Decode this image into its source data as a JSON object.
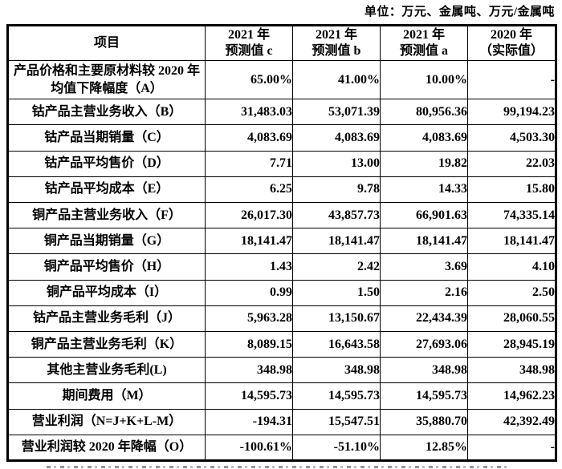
{
  "unit_note": "单位：万元、金属吨、万元/金属吨",
  "table": {
    "columns": [
      {
        "line1": "项目",
        "line2": ""
      },
      {
        "line1": "2021 年",
        "line2": "预测值 c"
      },
      {
        "line1": "2021 年",
        "line2": "预测值 b"
      },
      {
        "line1": "2021 年",
        "line2": "预测值 a"
      },
      {
        "line1": "2020 年",
        "line2": "（实际值）"
      }
    ],
    "rows": [
      {
        "label": "产品价格和主要原材料较 2020 年均值下降幅度（A）",
        "values": [
          "65.00%",
          "41.00%",
          "10.00%",
          "-"
        ],
        "tall": true
      },
      {
        "label": "钴产品主营业务收入（B）",
        "values": [
          "31,483.03",
          "53,071.39",
          "80,956.36",
          "99,194.23"
        ],
        "tall": false
      },
      {
        "label": "钴产品当期销量（C）",
        "values": [
          "4,083.69",
          "4,083.69",
          "4,083.69",
          "4,503.30"
        ],
        "tall": false
      },
      {
        "label": "钴产品平均售价（D）",
        "values": [
          "7.71",
          "13.00",
          "19.82",
          "22.03"
        ],
        "tall": false
      },
      {
        "label": "钴产品平均成本（E）",
        "values": [
          "6.25",
          "9.78",
          "14.33",
          "15.80"
        ],
        "tall": false
      },
      {
        "label": "铜产品主营业务收入（F）",
        "values": [
          "26,017.30",
          "43,857.73",
          "66,901.63",
          "74,335.14"
        ],
        "tall": false
      },
      {
        "label": "铜产品当期销量（G）",
        "values": [
          "18,141.47",
          "18,141.47",
          "18,141.47",
          "18,141.47"
        ],
        "tall": false
      },
      {
        "label": "铜产品平均售价（H）",
        "values": [
          "1.43",
          "2.42",
          "3.69",
          "4.10"
        ],
        "tall": false
      },
      {
        "label": "铜产品平均成本（I）",
        "values": [
          "0.99",
          "1.50",
          "2.16",
          "2.50"
        ],
        "tall": false
      },
      {
        "label": "钴产品主营业务毛利（J）",
        "values": [
          "5,963.28",
          "13,150.67",
          "22,434.39",
          "28,060.55"
        ],
        "tall": false
      },
      {
        "label": "铜产品主营业务毛利（K）",
        "values": [
          "8,089.15",
          "16,643.58",
          "27,693.06",
          "28,945.19"
        ],
        "tall": false
      },
      {
        "label": "其他主营业务毛利(L)",
        "values": [
          "348.98",
          "348.98",
          "348.98",
          "348.98"
        ],
        "tall": false
      },
      {
        "label": "期间费用（M）",
        "values": [
          "14,595.73",
          "14,595.73",
          "14,595.73",
          "14,962.23"
        ],
        "tall": false
      },
      {
        "label": "营业利润（N=J+K+L-M）",
        "values": [
          "-194.31",
          "15,547.51",
          "35,880.70",
          "42,392.49"
        ],
        "tall": false
      },
      {
        "label": "营业利润较 2020 年降幅（O）",
        "values": [
          "-100.61%",
          "-51.10%",
          "12.85%",
          "-"
        ],
        "tall": false
      }
    ]
  }
}
